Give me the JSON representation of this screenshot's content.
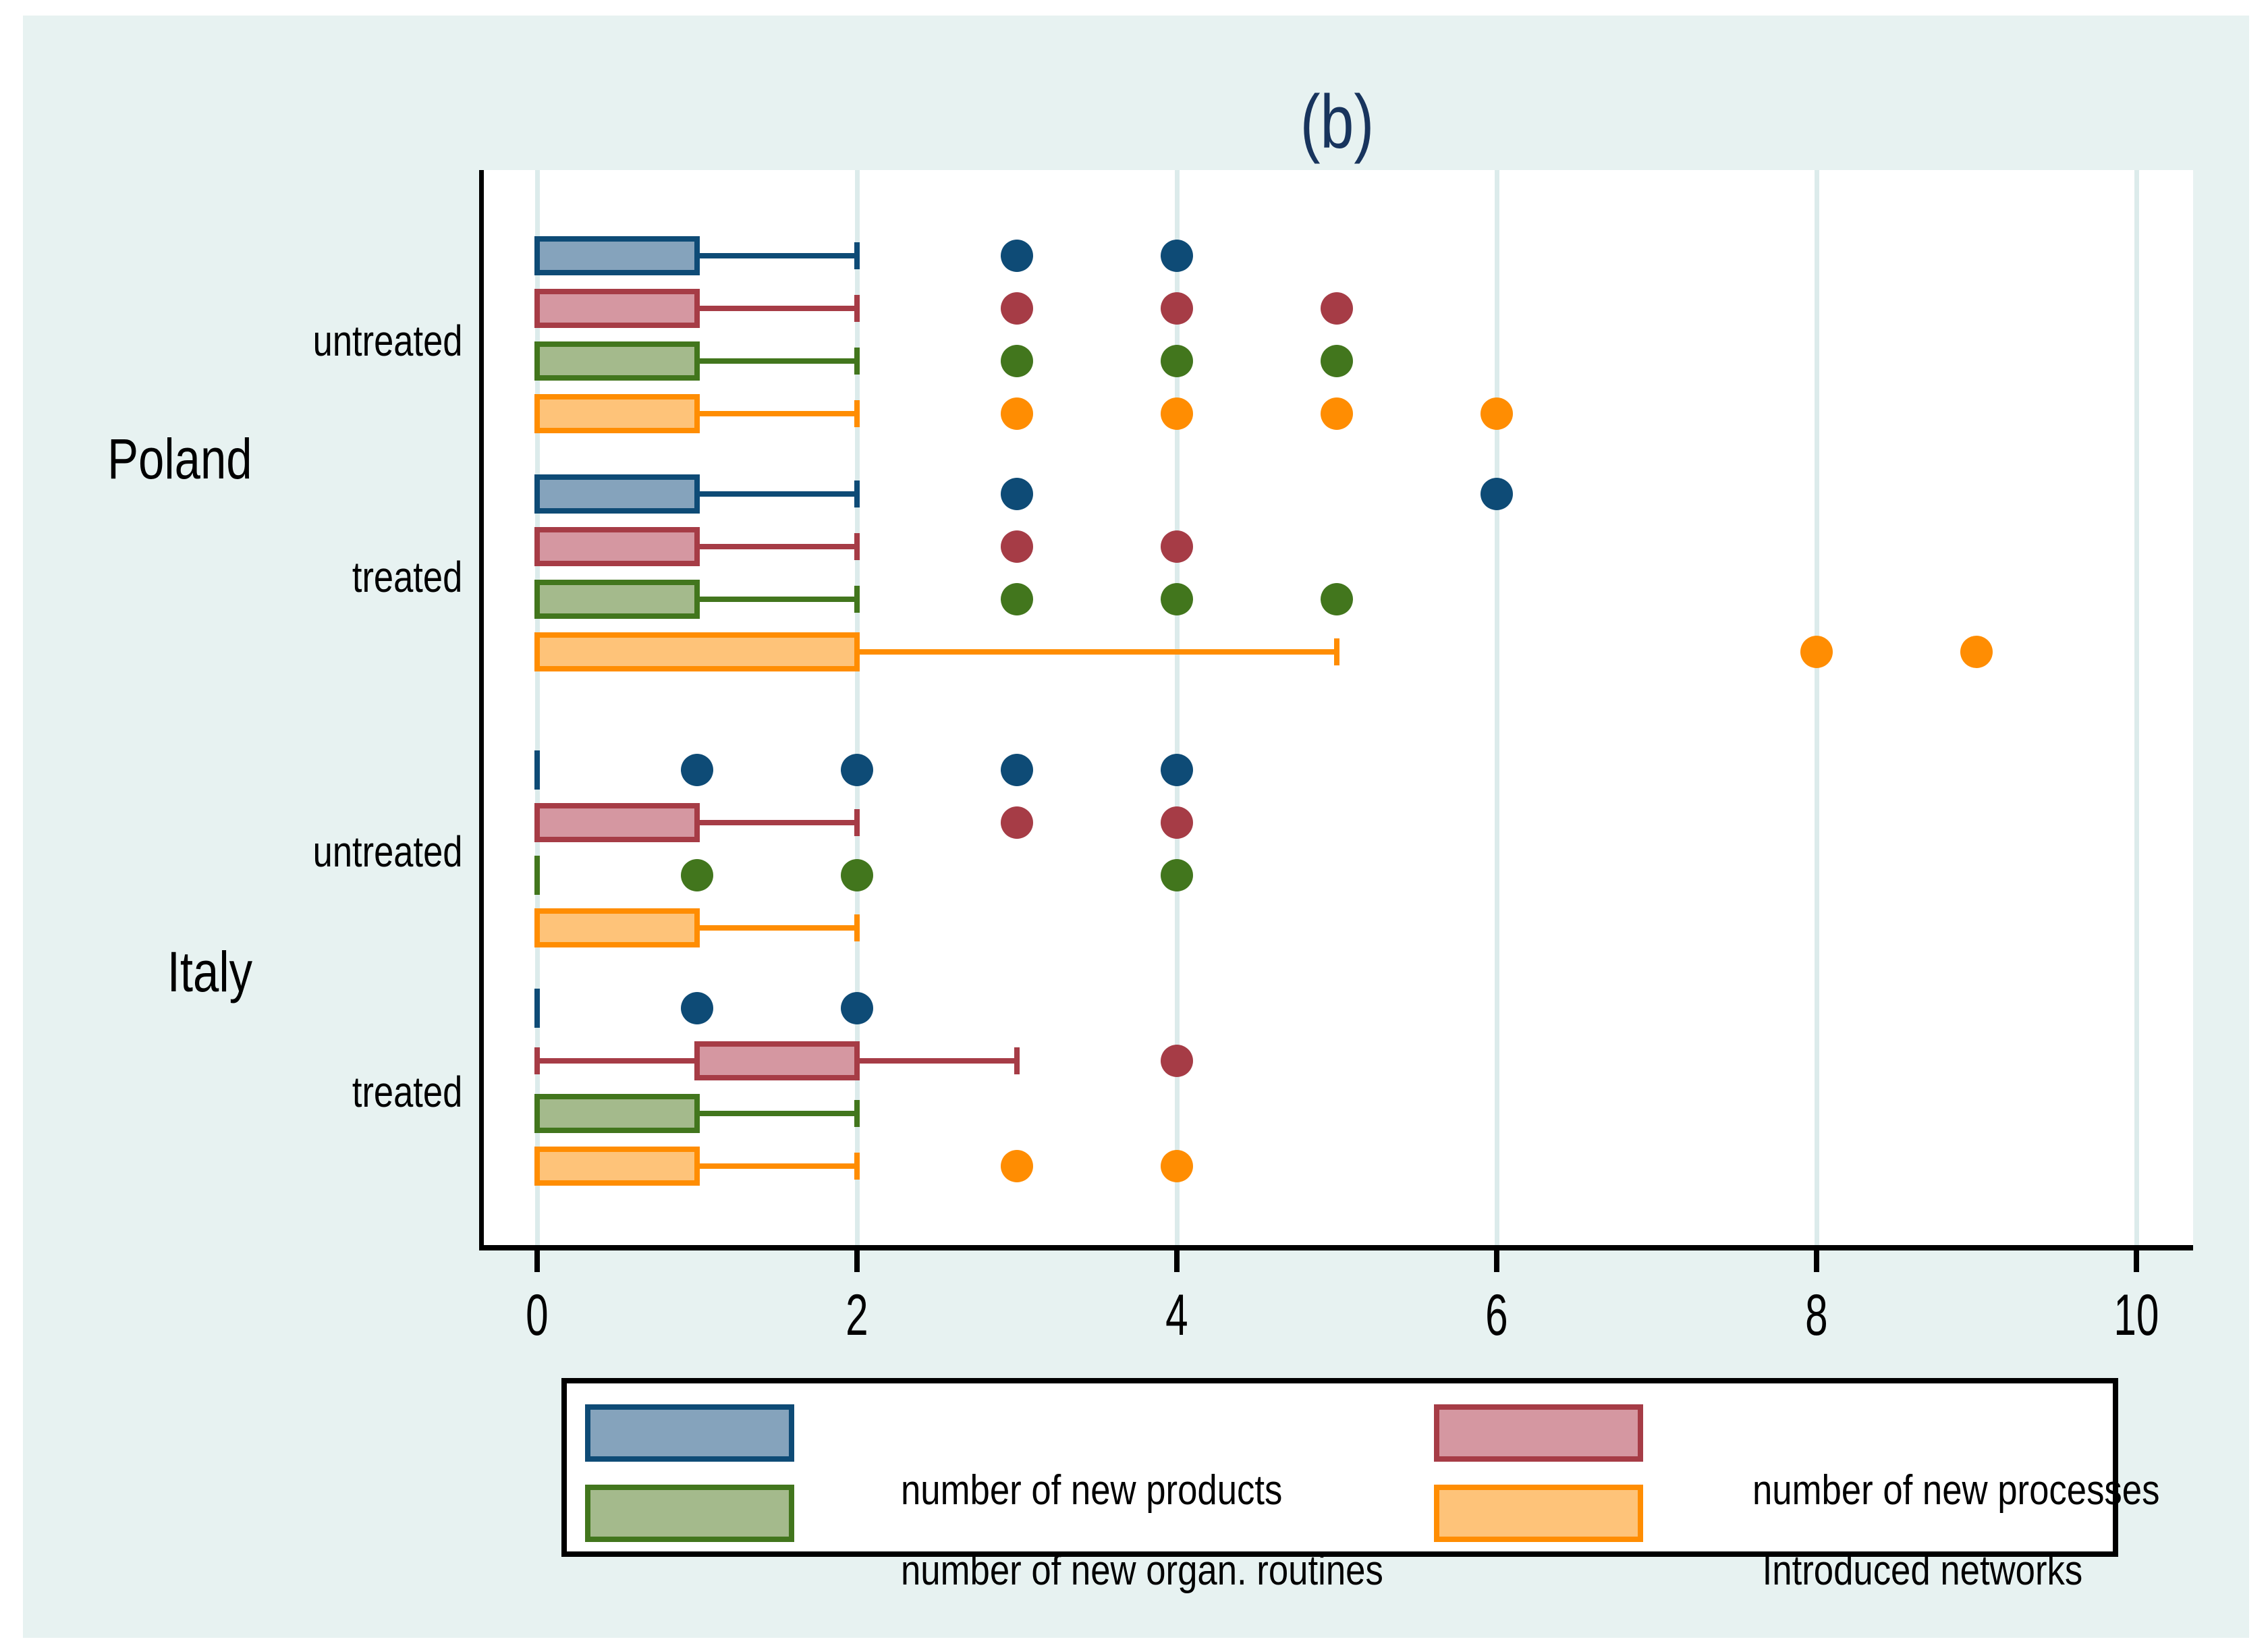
{
  "title": {
    "text": "(b)"
  },
  "legend": {
    "items": [
      {
        "key": "products",
        "label": "number of new products"
      },
      {
        "key": "processes",
        "label": "number of new processes"
      },
      {
        "key": "routines",
        "label": "number of new organ. routines"
      },
      {
        "key": "networks",
        "label": " Introduced networks"
      }
    ]
  },
  "colors": {
    "page_background": "#ffffff",
    "canvas_background": "#e7f2f1",
    "plot_background": "#ffffff",
    "gridline": "#dcebeb",
    "axis": "#000000",
    "title": "#18345d",
    "text": "#000000"
  },
  "chart_data": {
    "type": "boxplot-horizontal",
    "title": "(b)",
    "xlabel": "",
    "ylabel": "",
    "xlim": [
      -0.35,
      10.35
    ],
    "x_ticks": [
      0,
      2,
      4,
      6,
      8,
      10
    ],
    "grid": true,
    "legend_position": "bottom",
    "series": [
      {
        "key": "products",
        "label": "number of new products",
        "stroke": "#0e4b76",
        "fill": "#85a3bc"
      },
      {
        "key": "processes",
        "label": "number of new processes",
        "stroke": "#a63c46",
        "fill": "#d597a1"
      },
      {
        "key": "routines",
        "label": "number of new organ. routines",
        "stroke": "#42761d",
        "fill": "#a4ba8c"
      },
      {
        "key": "networks",
        "label": "Introduced networks",
        "stroke": "#ff8d02",
        "fill": "#fec379"
      }
    ],
    "groups": [
      {
        "country": "Poland",
        "cohort": "untreated",
        "boxes": [
          {
            "series": "products",
            "q1": 0,
            "q3": 1,
            "whisker_low": 0,
            "whisker_high": 2,
            "outliers": [
              3,
              4
            ]
          },
          {
            "series": "processes",
            "q1": 0,
            "q3": 1,
            "whisker_low": 0,
            "whisker_high": 2,
            "outliers": [
              3,
              4,
              5
            ]
          },
          {
            "series": "routines",
            "q1": 0,
            "q3": 1,
            "whisker_low": 0,
            "whisker_high": 2,
            "outliers": [
              3,
              4,
              5
            ]
          },
          {
            "series": "networks",
            "q1": 0,
            "q3": 1,
            "whisker_low": 0,
            "whisker_high": 2,
            "outliers": [
              3,
              4,
              5,
              6
            ]
          }
        ]
      },
      {
        "country": "Poland",
        "cohort": "treated",
        "boxes": [
          {
            "series": "products",
            "q1": 0,
            "q3": 1,
            "whisker_low": 0,
            "whisker_high": 2,
            "outliers": [
              3,
              6
            ]
          },
          {
            "series": "processes",
            "q1": 0,
            "q3": 1,
            "whisker_low": 0,
            "whisker_high": 2,
            "outliers": [
              3,
              4
            ]
          },
          {
            "series": "routines",
            "q1": 0,
            "q3": 1,
            "whisker_low": 0,
            "whisker_high": 2,
            "outliers": [
              3,
              4,
              5
            ]
          },
          {
            "series": "networks",
            "q1": 0,
            "q3": 2,
            "whisker_low": 0,
            "whisker_high": 5,
            "outliers": [
              8,
              9
            ]
          }
        ]
      },
      {
        "country": "Italy",
        "cohort": "untreated",
        "boxes": [
          {
            "series": "products",
            "q1": 0,
            "q3": 0,
            "whisker_low": 0,
            "whisker_high": 0,
            "outliers": [
              1,
              2,
              3,
              4
            ]
          },
          {
            "series": "processes",
            "q1": 0,
            "q3": 1,
            "whisker_low": 0,
            "whisker_high": 2,
            "outliers": [
              3,
              4
            ]
          },
          {
            "series": "routines",
            "q1": 0,
            "q3": 0,
            "whisker_low": 0,
            "whisker_high": 0,
            "outliers": [
              1,
              2,
              4
            ]
          },
          {
            "series": "networks",
            "q1": 0,
            "q3": 1,
            "whisker_low": 0,
            "whisker_high": 2,
            "outliers": []
          }
        ]
      },
      {
        "country": "Italy",
        "cohort": "treated",
        "boxes": [
          {
            "series": "products",
            "q1": 0,
            "q3": 0,
            "whisker_low": 0,
            "whisker_high": 0,
            "outliers": [
              1,
              2
            ]
          },
          {
            "series": "processes",
            "q1": 1,
            "q3": 2,
            "whisker_low": 0,
            "whisker_high": 3,
            "outliers": [
              4
            ]
          },
          {
            "series": "routines",
            "q1": 0,
            "q3": 1,
            "whisker_low": 0,
            "whisker_high": 2,
            "outliers": []
          },
          {
            "series": "networks",
            "q1": 0,
            "q3": 1,
            "whisker_low": 0,
            "whisker_high": 2,
            "outliers": [
              3,
              4
            ]
          }
        ]
      }
    ]
  }
}
